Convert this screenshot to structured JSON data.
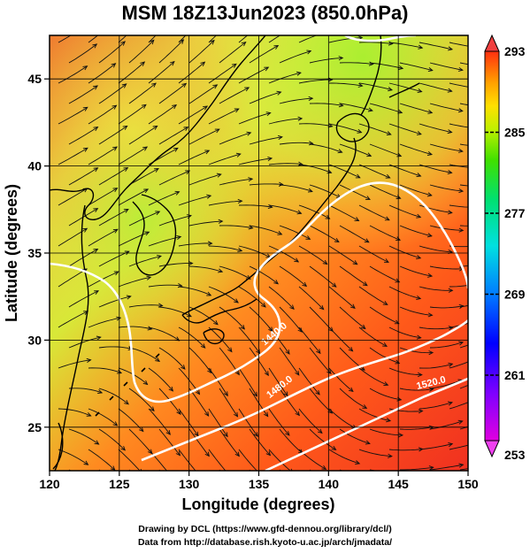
{
  "title": "MSM 18Z13Jun2023 (850.0hPa)",
  "credits": {
    "line1": "Drawing by DCL (https://www.gfd-dennou.org/library/dcl/)",
    "line2": "Data from http://database.rish.kyoto-u.ac.jp/arch/jmadata/"
  },
  "map": {
    "xlabel": "Longitude (degrees)",
    "ylabel": "Latitude  (degrees)",
    "x_ticks": [
      "120",
      "125",
      "130",
      "135",
      "140",
      "145",
      "150"
    ],
    "y_ticks": [
      "25",
      "30",
      "35",
      "40",
      "45"
    ],
    "lon_range": [
      120,
      150
    ],
    "lat_range": [
      22.5,
      47.5
    ],
    "fill_field": "temperature (K)",
    "contour_labels": [
      "1440.0",
      "1480.0",
      "1520.0"
    ]
  },
  "colorbar": {
    "labels": [
      "293",
      "285",
      "277",
      "269",
      "261",
      "253"
    ],
    "range": [
      253,
      293
    ],
    "colors": [
      "#e0e0e0",
      "#ff00ff",
      "#7f00ff",
      "#0000ff",
      "#007fff",
      "#00ffff",
      "#00ff7f",
      "#00ff00",
      "#7fff00",
      "#ffff00",
      "#ffbf00",
      "#ff7f00",
      "#ff3f00",
      "#ff0000"
    ]
  }
}
